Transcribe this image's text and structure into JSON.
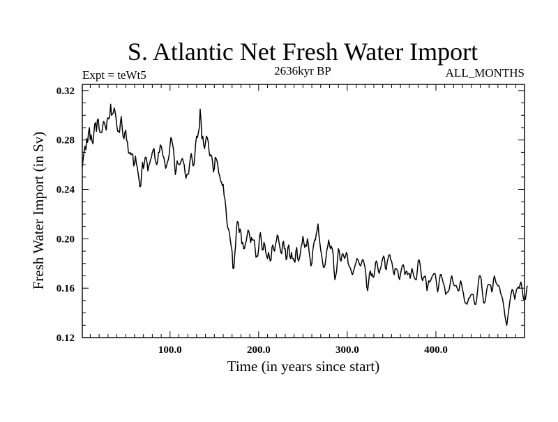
{
  "colors": {
    "line": "#000000",
    "background": "#ffffff",
    "frame": "#000000"
  },
  "chart_data": {
    "type": "line",
    "title": "S. Atlantic Net Fresh Water Import",
    "subtitle": "2636kyr BP",
    "experiment": "Expt = teWt5",
    "months": "ALL_MONTHS",
    "xlabel": "Time (in years since start)",
    "ylabel": "Fresh Water Import (in Sv)",
    "xlim": [
      1,
      500
    ],
    "ylim": [
      0.12,
      0.325
    ],
    "x_ticks": [
      100,
      200,
      300,
      400
    ],
    "x_tick_labels": [
      "100.0",
      "200.0",
      "300.0",
      "400.0"
    ],
    "y_ticks": [
      0.12,
      0.16,
      0.2,
      0.24,
      0.28,
      0.32
    ],
    "y_tick_labels": [
      "0.12",
      "0.16",
      "0.20",
      "0.24",
      "0.28",
      "0.32"
    ],
    "grid": false,
    "series": [
      {
        "name": "Net Fresh Water Import",
        "x_start": 1,
        "x_step": 1,
        "values": [
          0.258,
          0.265,
          0.27,
          0.275,
          0.272,
          0.281,
          0.278,
          0.286,
          0.29,
          0.28,
          0.284,
          0.279,
          0.277,
          0.285,
          0.293,
          0.294,
          0.287,
          0.296,
          0.297,
          0.289,
          0.286,
          0.286,
          0.286,
          0.291,
          0.295,
          0.294,
          0.291,
          0.288,
          0.296,
          0.298,
          0.297,
          0.3,
          0.309,
          0.3,
          0.301,
          0.302,
          0.306,
          0.303,
          0.298,
          0.291,
          0.287,
          0.287,
          0.286,
          0.294,
          0.299,
          0.29,
          0.283,
          0.281,
          0.286,
          0.288,
          0.28,
          0.278,
          0.27,
          0.269,
          0.27,
          0.268,
          0.269,
          0.268,
          0.259,
          0.261,
          0.267,
          0.261,
          0.258,
          0.253,
          0.248,
          0.242,
          0.243,
          0.254,
          0.262,
          0.257,
          0.261,
          0.266,
          0.266,
          0.262,
          0.255,
          0.259,
          0.261,
          0.264,
          0.266,
          0.27,
          0.272,
          0.273,
          0.265,
          0.262,
          0.26,
          0.263,
          0.27,
          0.27,
          0.276,
          0.275,
          0.272,
          0.267,
          0.266,
          0.262,
          0.257,
          0.259,
          0.262,
          0.264,
          0.268,
          0.276,
          0.282,
          0.28,
          0.276,
          0.272,
          0.262,
          0.252,
          0.256,
          0.263,
          0.261,
          0.26,
          0.26,
          0.262,
          0.264,
          0.265,
          0.262,
          0.26,
          0.253,
          0.249,
          0.252,
          0.252,
          0.253,
          0.26,
          0.266,
          0.269,
          0.264,
          0.259,
          0.26,
          0.268,
          0.278,
          0.283,
          0.282,
          0.286,
          0.29,
          0.305,
          0.295,
          0.281,
          0.283,
          0.276,
          0.273,
          0.278,
          0.283,
          0.282,
          0.279,
          0.271,
          0.267,
          0.268,
          0.267,
          0.262,
          0.254,
          0.257,
          0.266,
          0.265,
          0.263,
          0.259,
          0.253,
          0.251,
          0.247,
          0.246,
          0.243,
          0.244,
          0.235,
          0.232,
          0.225,
          0.215,
          0.209,
          0.208,
          0.205,
          0.199,
          0.194,
          0.19,
          0.176,
          0.176,
          0.187,
          0.195,
          0.209,
          0.214,
          0.213,
          0.205,
          0.208,
          0.205,
          0.196,
          0.197,
          0.192,
          0.192,
          0.196,
          0.198,
          0.203,
          0.207,
          0.206,
          0.202,
          0.197,
          0.201,
          0.199,
          0.199,
          0.199,
          0.192,
          0.185,
          0.186,
          0.186,
          0.192,
          0.202,
          0.205,
          0.199,
          0.191,
          0.191,
          0.197,
          0.195,
          0.189,
          0.186,
          0.184,
          0.189,
          0.186,
          0.182,
          0.183,
          0.193,
          0.195,
          0.191,
          0.19,
          0.196,
          0.198,
          0.203,
          0.202,
          0.197,
          0.193,
          0.189,
          0.188,
          0.196,
          0.198,
          0.192,
          0.192,
          0.183,
          0.185,
          0.193,
          0.195,
          0.186,
          0.184,
          0.189,
          0.184,
          0.184,
          0.182,
          0.181,
          0.19,
          0.193,
          0.184,
          0.182,
          0.184,
          0.188,
          0.194,
          0.196,
          0.202,
          0.197,
          0.193,
          0.195,
          0.194,
          0.2,
          0.196,
          0.189,
          0.184,
          0.178,
          0.18,
          0.19,
          0.195,
          0.199,
          0.199,
          0.204,
          0.207,
          0.212,
          0.203,
          0.197,
          0.191,
          0.187,
          0.182,
          0.177,
          0.177,
          0.179,
          0.185,
          0.191,
          0.194,
          0.199,
          0.195,
          0.192,
          0.194,
          0.192,
          0.188,
          0.175,
          0.167,
          0.17,
          0.174,
          0.184,
          0.192,
          0.19,
          0.183,
          0.182,
          0.187,
          0.188,
          0.186,
          0.184,
          0.186,
          0.189,
          0.187,
          0.18,
          0.178,
          0.177,
          0.175,
          0.172,
          0.171,
          0.174,
          0.176,
          0.179,
          0.181,
          0.184,
          0.183,
          0.181,
          0.179,
          0.178,
          0.18,
          0.183,
          0.183,
          0.18,
          0.177,
          0.171,
          0.161,
          0.158,
          0.164,
          0.172,
          0.174,
          0.17,
          0.172,
          0.169,
          0.169,
          0.174,
          0.181,
          0.182,
          0.179,
          0.174,
          0.172,
          0.175,
          0.177,
          0.181,
          0.184,
          0.186,
          0.184,
          0.176,
          0.175,
          0.181,
          0.184,
          0.187,
          0.187,
          0.183,
          0.182,
          0.178,
          0.173,
          0.171,
          0.176,
          0.176,
          0.175,
          0.174,
          0.169,
          0.167,
          0.171,
          0.175,
          0.178,
          0.179,
          0.177,
          0.171,
          0.173,
          0.174,
          0.171,
          0.172,
          0.172,
          0.168,
          0.172,
          0.176,
          0.173,
          0.17,
          0.168,
          0.167,
          0.167,
          0.174,
          0.182,
          0.183,
          0.18,
          0.174,
          0.168,
          0.166,
          0.169,
          0.169,
          0.17,
          0.165,
          0.158,
          0.162,
          0.166,
          0.165,
          0.166,
          0.168,
          0.17,
          0.171,
          0.172,
          0.172,
          0.168,
          0.162,
          0.157,
          0.161,
          0.167,
          0.171,
          0.171,
          0.168,
          0.165,
          0.163,
          0.16,
          0.155,
          0.156,
          0.157,
          0.157,
          0.159,
          0.163,
          0.168,
          0.17,
          0.166,
          0.163,
          0.162,
          0.162,
          0.162,
          0.16,
          0.158,
          0.158,
          0.163,
          0.166,
          0.163,
          0.159,
          0.156,
          0.151,
          0.148,
          0.148,
          0.147,
          0.149,
          0.152,
          0.152,
          0.154,
          0.155,
          0.155,
          0.155,
          0.15,
          0.147,
          0.147,
          0.151,
          0.158,
          0.165,
          0.17,
          0.17,
          0.168,
          0.16,
          0.153,
          0.148,
          0.148,
          0.151,
          0.157,
          0.161,
          0.163,
          0.163,
          0.163,
          0.162,
          0.157,
          0.159,
          0.167,
          0.17,
          0.167,
          0.164,
          0.163,
          0.162,
          0.162,
          0.16,
          0.156,
          0.154,
          0.152,
          0.148,
          0.143,
          0.137,
          0.133,
          0.13,
          0.136,
          0.141,
          0.147,
          0.152,
          0.156,
          0.159,
          0.158,
          0.155,
          0.151,
          0.155,
          0.159,
          0.16,
          0.161,
          0.16,
          0.163,
          0.165,
          0.161,
          0.155,
          0.151,
          0.152,
          0.151,
          0.156,
          0.162
        ]
      }
    ]
  }
}
